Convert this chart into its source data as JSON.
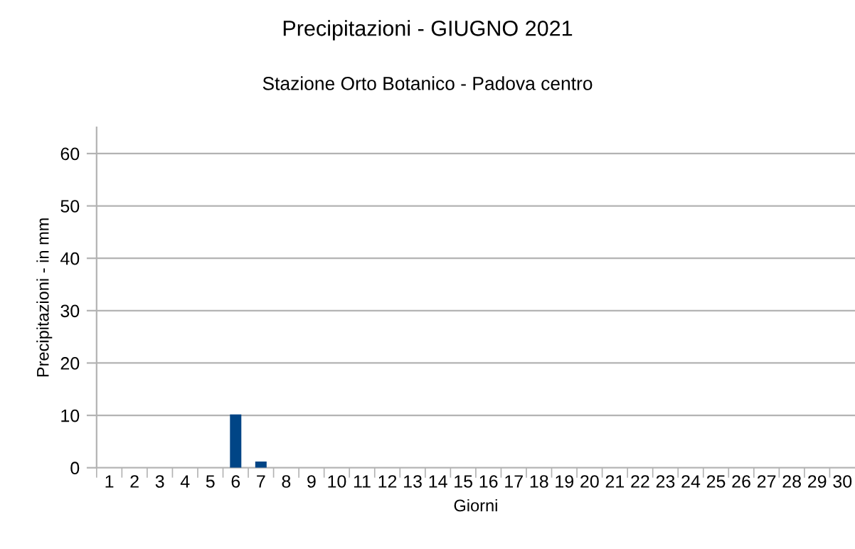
{
  "chart_data": {
    "type": "bar",
    "title": "Precipitazioni - GIUGNO 2021",
    "subtitle": "Stazione Orto Botanico - Padova centro",
    "xlabel": "Giorni",
    "ylabel": "Precipitazioni - in mm",
    "categories": [
      "1",
      "2",
      "3",
      "4",
      "5",
      "6",
      "7",
      "8",
      "9",
      "10",
      "11",
      "12",
      "13",
      "14",
      "15",
      "16",
      "17",
      "18",
      "19",
      "20",
      "21",
      "22",
      "23",
      "24",
      "25",
      "26",
      "27",
      "28",
      "29",
      "30"
    ],
    "values": [
      0,
      0,
      0,
      0,
      0,
      10.2,
      1.2,
      0,
      0,
      0,
      0,
      0,
      0,
      0,
      0,
      0,
      0,
      0,
      0,
      0,
      0,
      0,
      0,
      0,
      0,
      0,
      0,
      0,
      0,
      0
    ],
    "color": "#004586",
    "ylim": [
      0,
      65
    ],
    "yticks": [
      0,
      10,
      20,
      30,
      40,
      50,
      60
    ],
    "grid": "y",
    "legend": false
  }
}
